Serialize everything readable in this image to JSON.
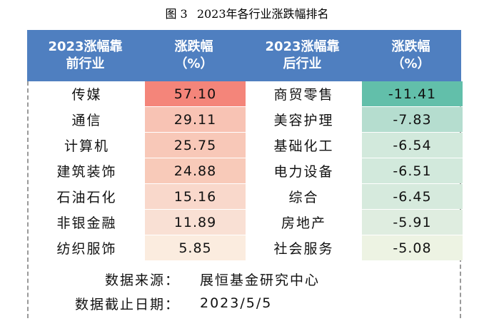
{
  "caption": {
    "fig": "图 3",
    "title": "2023年各行业涨跌幅排名"
  },
  "headers": [
    "2023涨幅靠\n前行业",
    "涨跌幅\n（%）",
    "2023涨幅靠\n后行业",
    "涨跌幅\n（%）"
  ],
  "rows": [
    {
      "top_name": "传媒",
      "top_val": "57.10",
      "bot_name": "商贸零售",
      "bot_val": "-11.41"
    },
    {
      "top_name": "通信",
      "top_val": "29.11",
      "bot_name": "美容护理",
      "bot_val": "-7.83"
    },
    {
      "top_name": "计算机",
      "top_val": "25.75",
      "bot_name": "基础化工",
      "bot_val": "-6.54"
    },
    {
      "top_name": "建筑装饰",
      "top_val": "24.88",
      "bot_name": "电力设备",
      "bot_val": "-6.51"
    },
    {
      "top_name": "石油石化",
      "top_val": "15.16",
      "bot_name": "综合",
      "bot_val": "-6.45"
    },
    {
      "top_name": "非银金融",
      "top_val": "11.89",
      "bot_name": "房地产",
      "bot_val": "-5.91"
    },
    {
      "top_name": "纺织服饰",
      "top_val": "5.85",
      "bot_name": "社会服务",
      "bot_val": "-5.08"
    }
  ],
  "cell_colors": {
    "top": [
      "#f4857a",
      "#f8c3b4",
      "#f8c8b8",
      "#f8cab9",
      "#f9d8cb",
      "#f9e0d4",
      "#fbecdf"
    ],
    "bottom": [
      "#62bfaa",
      "#b5ddcf",
      "#d2e9dc",
      "#d2e9dc",
      "#d6eadd",
      "#dfede0",
      "#edf3e3"
    ]
  },
  "footer": {
    "source_label": "数据来源：",
    "source_value": "展恒基金研究中心",
    "date_label": "数据截止日期：",
    "date_value": "2023/5/5"
  }
}
